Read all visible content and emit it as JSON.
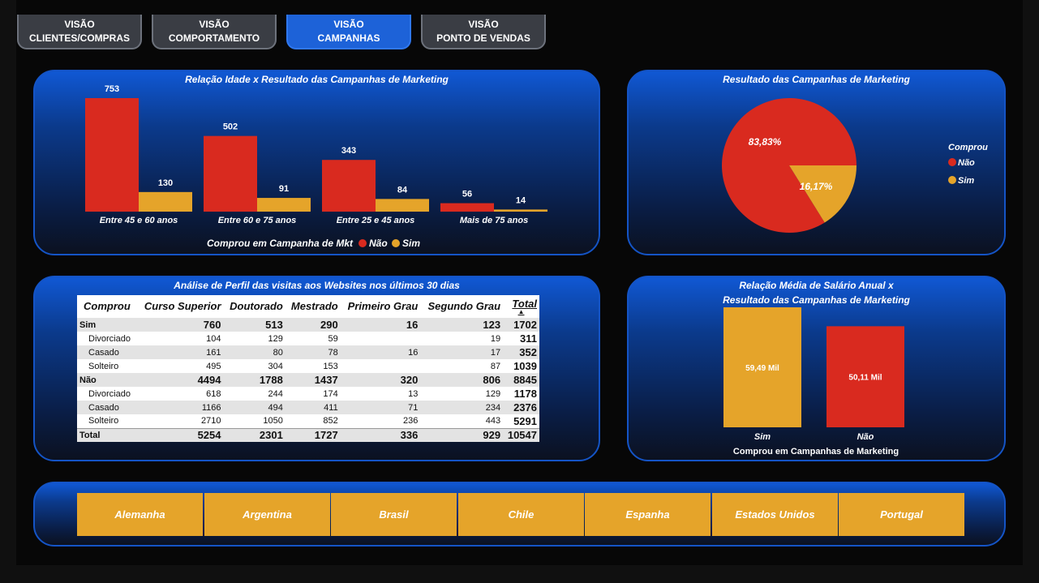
{
  "nav": {
    "tabs": [
      {
        "line1": "VISÃO",
        "line2": "CLIENTES/COMPRAS"
      },
      {
        "line1": "VISÃO",
        "line2": "COMPORTAMENTO"
      },
      {
        "line1": "VISÃO",
        "line2": "CAMPANHAS"
      },
      {
        "line1": "VISÃO",
        "line2": "PONTO DE VENDAS"
      }
    ],
    "active_tab": "CAMPANHAS"
  },
  "colors": {
    "nao": "#d92a1f",
    "sim": "#e5a42a",
    "accent": "#1d62d8",
    "background": "#070707"
  },
  "age_chart": {
    "title": "Relação Idade x Resultado das Campanhas de Marketing",
    "legend_title": "Comprou em Campanha de Mkt",
    "legend": [
      "Não",
      "Sim"
    ]
  },
  "pie_chart": {
    "title": "Resultado das Campanhas de Marketing",
    "legend_title": "Comprou",
    "legend": [
      "Não",
      "Sim"
    ],
    "labels": [
      "83,83%",
      "16,17%"
    ]
  },
  "table": {
    "title": "Análise de Perfil das visitas aos Websites nos últimos 30 dias",
    "headers": [
      "Comprou",
      "Curso Superior",
      "Doutorado",
      "Mestrado",
      "Primeiro Grau",
      "Segundo Grau",
      "Total"
    ],
    "sort_indicator": "▲",
    "rows": [
      {
        "type": "grp",
        "cells": [
          "Sim",
          "760",
          "513",
          "290",
          "16",
          "123",
          "1702"
        ]
      },
      {
        "type": "sub",
        "cells": [
          "Divorciado",
          "104",
          "129",
          "59",
          "",
          "19",
          "311"
        ]
      },
      {
        "type": "sub",
        "cells": [
          "Casado",
          "161",
          "80",
          "78",
          "16",
          "17",
          "352"
        ]
      },
      {
        "type": "sub",
        "cells": [
          "Solteiro",
          "495",
          "304",
          "153",
          "",
          "87",
          "1039"
        ]
      },
      {
        "type": "grp",
        "cells": [
          "Não",
          "4494",
          "1788",
          "1437",
          "320",
          "806",
          "8845"
        ]
      },
      {
        "type": "sub",
        "cells": [
          "Divorciado",
          "618",
          "244",
          "174",
          "13",
          "129",
          "1178"
        ]
      },
      {
        "type": "sub",
        "cells": [
          "Casado",
          "1166",
          "494",
          "411",
          "71",
          "234",
          "2376"
        ]
      },
      {
        "type": "sub",
        "cells": [
          "Solteiro",
          "2710",
          "1050",
          "852",
          "236",
          "443",
          "5291"
        ]
      },
      {
        "type": "total",
        "cells": [
          "Total",
          "5254",
          "2301",
          "1727",
          "336",
          "929",
          "10547"
        ]
      }
    ]
  },
  "salary_chart": {
    "title_line1": "Relação Média de Salário Anual x",
    "title_line2": "Resultado das Campanhas de Marketing",
    "xlabel": "Comprou em Campanhas de Marketing"
  },
  "slicer": {
    "countries": [
      "Alemanha",
      "Argentina",
      "Brasil",
      "Chile",
      "Espanha",
      "Estados Unidos",
      "Portugal"
    ]
  },
  "chart_data": [
    {
      "type": "bar",
      "title": "Relação Idade x Resultado das Campanhas de Marketing",
      "categories": [
        "Entre 45 e 60 anos",
        "Entre 60 e 75 anos",
        "Entre 25 e 45 anos",
        "Mais de 75 anos"
      ],
      "series": [
        {
          "name": "Não",
          "values": [
            753,
            502,
            343,
            56
          ]
        },
        {
          "name": "Sim",
          "values": [
            130,
            91,
            84,
            14
          ]
        }
      ],
      "legend_title": "Comprou em Campanha de Mkt",
      "ylim": [
        0,
        753
      ],
      "grid": false,
      "legend_position": "bottom"
    },
    {
      "type": "pie",
      "title": "Resultado das Campanhas de Marketing",
      "categories": [
        "Não",
        "Sim"
      ],
      "values": [
        83.83,
        16.17
      ],
      "labels": [
        "83,83%",
        "16,17%"
      ],
      "legend_title": "Comprou",
      "legend_position": "right"
    },
    {
      "type": "bar",
      "title": "Relação Média de Salário Anual x Resultado das Campanhas de Marketing",
      "categories": [
        "Sim",
        "Não"
      ],
      "values": [
        59.49,
        50.11
      ],
      "labels": [
        "59,49 Mil",
        "50,11 Mil"
      ],
      "xlabel": "Comprou em Campanhas de Marketing",
      "ylim": [
        0,
        59.49
      ],
      "grid": false
    }
  ]
}
